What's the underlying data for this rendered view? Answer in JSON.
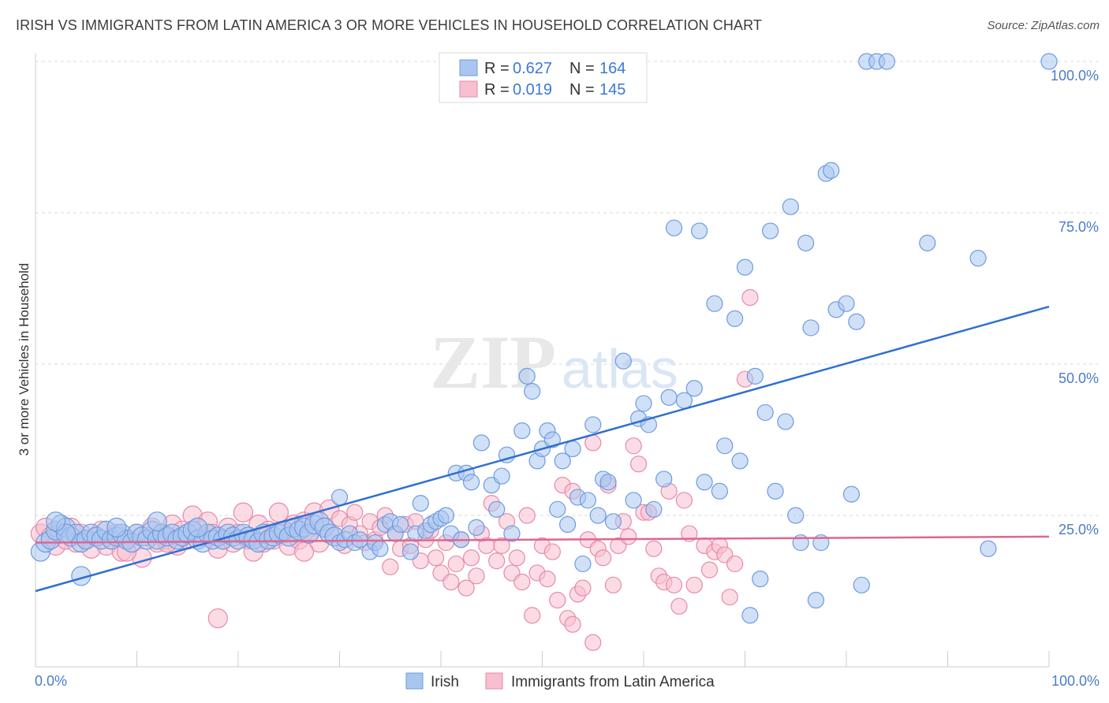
{
  "title": "IRISH VS IMMIGRANTS FROM LATIN AMERICA 3 OR MORE VEHICLES IN HOUSEHOLD CORRELATION CHART",
  "source": "Source: ZipAtlas.com",
  "watermark": {
    "zip": "ZIP",
    "atlas": "atlas"
  },
  "colors": {
    "irish_fill": "#a9c6f0",
    "irish_stroke": "#6d9be0",
    "irish_line": "#2f6fd1",
    "latin_fill": "#f7bfd0",
    "latin_stroke": "#e889a8",
    "latin_line": "#e0668f",
    "axis_text": "#4a7cc9",
    "grid": "#d9d9d9"
  },
  "legend": {
    "rows": [
      {
        "r_label": "R =",
        "r_value": "0.627",
        "n_label": "N =",
        "n_value": "164"
      },
      {
        "r_label": "R =",
        "r_value": "0.019",
        "n_label": "N =",
        "n_value": "145"
      }
    ]
  },
  "chart_data": {
    "type": "scatter",
    "title": "IRISH VS IMMIGRANTS FROM LATIN AMERICA 3 OR MORE VEHICLES IN HOUSEHOLD CORRELATION CHART",
    "xlabel": "",
    "ylabel": "3 or more Vehicles in Household",
    "xlim": [
      0,
      100
    ],
    "ylim": [
      0,
      100
    ],
    "x_tick_labels": [
      "0.0%",
      "100.0%"
    ],
    "y_tick_labels": [
      "25.0%",
      "50.0%",
      "75.0%",
      "100.0%"
    ],
    "y_ticks": [
      25,
      50,
      75,
      100
    ],
    "grid": "horizontal dashed",
    "legend_position": "bottom",
    "series": [
      {
        "name": "Irish",
        "r": 0.627,
        "n": 164,
        "trend": {
          "x0": 0,
          "y0": 12.5,
          "x1": 100,
          "y1": 59.5
        },
        "points": [
          [
            0.5,
            19
          ],
          [
            1,
            20.5
          ],
          [
            1.5,
            21
          ],
          [
            2,
            22.5
          ],
          [
            2.5,
            23.5
          ],
          [
            3,
            23
          ],
          [
            3.5,
            21.5
          ],
          [
            4,
            22
          ],
          [
            4.5,
            20.5
          ],
          [
            5,
            21
          ],
          [
            5.5,
            22
          ],
          [
            6,
            21.5
          ],
          [
            6.5,
            21
          ],
          [
            7,
            22.5
          ],
          [
            7.5,
            21
          ],
          [
            8,
            21.5
          ],
          [
            8.5,
            22
          ],
          [
            9,
            21
          ],
          [
            9.5,
            20.5
          ],
          [
            10,
            22
          ],
          [
            10.5,
            21.5
          ],
          [
            11,
            21
          ],
          [
            11.5,
            22.5
          ],
          [
            12,
            21
          ],
          [
            12.5,
            22
          ],
          [
            13,
            21.5
          ],
          [
            13.5,
            22
          ],
          [
            14,
            21
          ],
          [
            14.5,
            21.5
          ],
          [
            15,
            22
          ],
          [
            4.5,
            15
          ],
          [
            15.5,
            22.5
          ],
          [
            16,
            21
          ],
          [
            16.5,
            20.5
          ],
          [
            17,
            22
          ],
          [
            17.5,
            21
          ],
          [
            18,
            21.5
          ],
          [
            18.5,
            21
          ],
          [
            19,
            22
          ],
          [
            19.5,
            21.5
          ],
          [
            20,
            21
          ],
          [
            20.5,
            22
          ],
          [
            21,
            21.5
          ],
          [
            21.5,
            21
          ],
          [
            22,
            20.5
          ],
          [
            22.5,
            22
          ],
          [
            23,
            21
          ],
          [
            23.5,
            21.5
          ],
          [
            24,
            22
          ],
          [
            24.5,
            22.5
          ],
          [
            25,
            21.5
          ],
          [
            25.5,
            23
          ],
          [
            26,
            22.5
          ],
          [
            26.5,
            23
          ],
          [
            27,
            22
          ],
          [
            27.5,
            23.5
          ],
          [
            28,
            24
          ],
          [
            28.5,
            23
          ],
          [
            29,
            22
          ],
          [
            29.5,
            21.5
          ],
          [
            30,
            20.5
          ],
          [
            30.5,
            21
          ],
          [
            31,
            22
          ],
          [
            31.5,
            20.5
          ],
          [
            32,
            21
          ],
          [
            33,
            19
          ],
          [
            33.5,
            20.5
          ],
          [
            34,
            19.5
          ],
          [
            34.5,
            23.5
          ],
          [
            35,
            24
          ],
          [
            35.5,
            22
          ],
          [
            36,
            23.5
          ],
          [
            37,
            19
          ],
          [
            37.5,
            22
          ],
          [
            38,
            27
          ],
          [
            38.5,
            22.5
          ],
          [
            39,
            23.5
          ],
          [
            39.5,
            24
          ],
          [
            40,
            24.5
          ],
          [
            40.5,
            25
          ],
          [
            41,
            22
          ],
          [
            41.5,
            32
          ],
          [
            42,
            21
          ],
          [
            42.5,
            32
          ],
          [
            43,
            30.5
          ],
          [
            43.5,
            23
          ],
          [
            44,
            37
          ],
          [
            45,
            30
          ],
          [
            45.5,
            26
          ],
          [
            46,
            31.5
          ],
          [
            46.5,
            35
          ],
          [
            47,
            22
          ],
          [
            48,
            39
          ],
          [
            48.5,
            48
          ],
          [
            49,
            45.5
          ],
          [
            49.5,
            34
          ],
          [
            50,
            36
          ],
          [
            50.5,
            39
          ],
          [
            51,
            37.5
          ],
          [
            51.5,
            26
          ],
          [
            52,
            34
          ],
          [
            52.5,
            23.5
          ],
          [
            53,
            36
          ],
          [
            53.5,
            28
          ],
          [
            54,
            17
          ],
          [
            54.5,
            27.5
          ],
          [
            55,
            40
          ],
          [
            55.5,
            25
          ],
          [
            56,
            31
          ],
          [
            56.5,
            30.5
          ],
          [
            57,
            24
          ],
          [
            58,
            50.5
          ],
          [
            59,
            27.5
          ],
          [
            59.5,
            41
          ],
          [
            60,
            43.5
          ],
          [
            60.5,
            40
          ],
          [
            61,
            26
          ],
          [
            62,
            31
          ],
          [
            62.5,
            44.5
          ],
          [
            63,
            72.5
          ],
          [
            64,
            44
          ],
          [
            65,
            46
          ],
          [
            65.5,
            72
          ],
          [
            66,
            30.5
          ],
          [
            67,
            60
          ],
          [
            67.5,
            29
          ],
          [
            68,
            36.5
          ],
          [
            69,
            57.5
          ],
          [
            69.5,
            34
          ],
          [
            70,
            66
          ],
          [
            70.5,
            8.5
          ],
          [
            71,
            48
          ],
          [
            71.5,
            14.5
          ],
          [
            72,
            42
          ],
          [
            72.5,
            72
          ],
          [
            73,
            29
          ],
          [
            74,
            40.5
          ],
          [
            74.5,
            76
          ],
          [
            75,
            25
          ],
          [
            75.5,
            20.5
          ],
          [
            76,
            70
          ],
          [
            76.5,
            56
          ],
          [
            77,
            11
          ],
          [
            77.5,
            20.5
          ],
          [
            78,
            81.5
          ],
          [
            78.5,
            82
          ],
          [
            79,
            59
          ],
          [
            80,
            60
          ],
          [
            80.5,
            28.5
          ],
          [
            81,
            57
          ],
          [
            81.5,
            13.5
          ],
          [
            82,
            100
          ],
          [
            83,
            100
          ],
          [
            84,
            100
          ],
          [
            88,
            70
          ],
          [
            93,
            67.5
          ],
          [
            94,
            19.5
          ],
          [
            100,
            100
          ],
          [
            30,
            28
          ],
          [
            16,
            23
          ],
          [
            12,
            24
          ],
          [
            8,
            23
          ],
          [
            3,
            22
          ],
          [
            2,
            24
          ]
        ]
      },
      {
        "name": "Immigrants from Latin America",
        "r": 0.019,
        "n": 145,
        "trend": {
          "x0": 0,
          "y0": 20.5,
          "x1": 100,
          "y1": 21.5
        },
        "points": [
          [
            0.5,
            22
          ],
          [
            1,
            23
          ],
          [
            1.5,
            21.5
          ],
          [
            2,
            20
          ],
          [
            2.5,
            22
          ],
          [
            3,
            21
          ],
          [
            3.5,
            23
          ],
          [
            4,
            20.5
          ],
          [
            4.5,
            22
          ],
          [
            5,
            21
          ],
          [
            5.5,
            19.5
          ],
          [
            6,
            21.5
          ],
          [
            6.5,
            22.5
          ],
          [
            7,
            20
          ],
          [
            7.5,
            21
          ],
          [
            8,
            22
          ],
          [
            8.5,
            19
          ],
          [
            9,
            21
          ],
          [
            9.5,
            20.5
          ],
          [
            10,
            22
          ],
          [
            10.5,
            18
          ],
          [
            11,
            21.5
          ],
          [
            11.5,
            23
          ],
          [
            12,
            20.5
          ],
          [
            12.5,
            22
          ],
          [
            13,
            21
          ],
          [
            13.5,
            23.5
          ],
          [
            14,
            20
          ],
          [
            14.5,
            22.5
          ],
          [
            15,
            21
          ],
          [
            15.5,
            25
          ],
          [
            16,
            23
          ],
          [
            16.5,
            21.5
          ],
          [
            17,
            24
          ],
          [
            17.5,
            22
          ],
          [
            18,
            19.5
          ],
          [
            18.5,
            21
          ],
          [
            19,
            23
          ],
          [
            19.5,
            20.5
          ],
          [
            20,
            22
          ],
          [
            18,
            8
          ],
          [
            20.5,
            25.5
          ],
          [
            21,
            21
          ],
          [
            21.5,
            19
          ],
          [
            22,
            23.5
          ],
          [
            22.5,
            20.5
          ],
          [
            23,
            22.5
          ],
          [
            23.5,
            21
          ],
          [
            24,
            25.5
          ],
          [
            24.5,
            22
          ],
          [
            25,
            20
          ],
          [
            25.5,
            23.5
          ],
          [
            26,
            21
          ],
          [
            26.5,
            24
          ],
          [
            27,
            22
          ],
          [
            27.5,
            25.5
          ],
          [
            28,
            20.5
          ],
          [
            28.5,
            23
          ],
          [
            29,
            26
          ],
          [
            29.5,
            21.5
          ],
          [
            30,
            24.5
          ],
          [
            30.5,
            20
          ],
          [
            31,
            23.5
          ],
          [
            31.5,
            25.5
          ],
          [
            32,
            22
          ],
          [
            32.5,
            20.5
          ],
          [
            33,
            24
          ],
          [
            33.5,
            21
          ],
          [
            34,
            23
          ],
          [
            34.5,
            25
          ],
          [
            35,
            16.5
          ],
          [
            35.5,
            22
          ],
          [
            36,
            19.5
          ],
          [
            36.5,
            23.5
          ],
          [
            37,
            20
          ],
          [
            37.5,
            24
          ],
          [
            38,
            17.5
          ],
          [
            38.5,
            21
          ],
          [
            39,
            22.5
          ],
          [
            39.5,
            18
          ],
          [
            40,
            15.5
          ],
          [
            40.5,
            20.5
          ],
          [
            41,
            14
          ],
          [
            41.5,
            17
          ],
          [
            42,
            21
          ],
          [
            42.5,
            13
          ],
          [
            43,
            18
          ],
          [
            43.5,
            15
          ],
          [
            44,
            22
          ],
          [
            44.5,
            20
          ],
          [
            45,
            27
          ],
          [
            45.5,
            17.5
          ],
          [
            46,
            20
          ],
          [
            46.5,
            24
          ],
          [
            47,
            15.5
          ],
          [
            47.5,
            18
          ],
          [
            48,
            14
          ],
          [
            48.5,
            25
          ],
          [
            49,
            8.5
          ],
          [
            49.5,
            15.5
          ],
          [
            50,
            20
          ],
          [
            50.5,
            14.5
          ],
          [
            51,
            19
          ],
          [
            51.5,
            11
          ],
          [
            52,
            30
          ],
          [
            52.5,
            8
          ],
          [
            53,
            29
          ],
          [
            53.5,
            12
          ],
          [
            54,
            13
          ],
          [
            54.5,
            21
          ],
          [
            55,
            37
          ],
          [
            55.5,
            19.5
          ],
          [
            56,
            18
          ],
          [
            56.5,
            30
          ],
          [
            57,
            13.5
          ],
          [
            57.5,
            20
          ],
          [
            58,
            24
          ],
          [
            58.5,
            21.5
          ],
          [
            59,
            36.5
          ],
          [
            59.5,
            33.5
          ],
          [
            60,
            25.5
          ],
          [
            60.5,
            25.5
          ],
          [
            61,
            19.5
          ],
          [
            61.5,
            15
          ],
          [
            62,
            14
          ],
          [
            62.5,
            29
          ],
          [
            63,
            13.5
          ],
          [
            63.5,
            10
          ],
          [
            64,
            27.5
          ],
          [
            64.5,
            22
          ],
          [
            65,
            13.5
          ],
          [
            66,
            20
          ],
          [
            66.5,
            16
          ],
          [
            67,
            19
          ],
          [
            67.5,
            20
          ],
          [
            68,
            18.5
          ],
          [
            68.5,
            11.5
          ],
          [
            69,
            17
          ],
          [
            70,
            47.5
          ],
          [
            70.5,
            61
          ],
          [
            53,
            7
          ],
          [
            55,
            4
          ],
          [
            26.5,
            19
          ],
          [
            13,
            20.5
          ],
          [
            9,
            19
          ]
        ]
      }
    ]
  },
  "bottom_legend": {
    "irish": "Irish",
    "latin": "Immigrants from Latin America"
  }
}
